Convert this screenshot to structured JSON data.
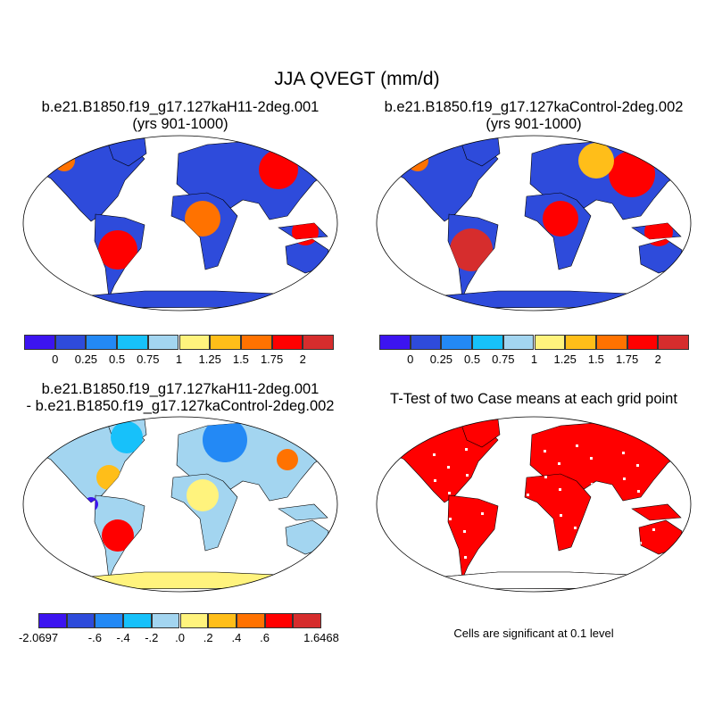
{
  "title": "JJA QVEGT (mm/d)",
  "panels": [
    {
      "title": "b.e21.B1850.f19_g17.127kaH11-2deg.001",
      "subtitle": "(yrs 901-1000)",
      "base_color": "#2e4bdb",
      "field": "case1"
    },
    {
      "title": "b.e21.B1850.f19_g17.127kaControl-2deg.002",
      "subtitle": "(yrs 901-1000)",
      "base_color": "#2e4bdb",
      "field": "case2"
    },
    {
      "title": "b.e21.B1850.f19_g17.127kaH11-2deg.001",
      "subtitle": "- b.e21.B1850.f19_g17.127kaControl-2deg.002",
      "base_color": "#a3d5f0",
      "field": "difference"
    },
    {
      "title": "T-Test of two Case means at each grid point",
      "subtitle": "",
      "base_color": "#ff0000",
      "field": "significance",
      "note": "Cells are significant at 0.1 level"
    }
  ],
  "colorbar_colors": [
    "#3c14f0",
    "#2e4bdb",
    "#2389f5",
    "#17c1fa",
    "#a3d5f0",
    "#fff37d",
    "#ffbe19",
    "#ff7200",
    "#ff0000",
    "#d62d2d"
  ],
  "colorbar_case_labels": [
    "0",
    "0.25",
    "0.5",
    "0.75",
    "1",
    "1.25",
    "1.5",
    "1.75",
    "2"
  ],
  "colorbar_diff_labels": [
    "-2.0697",
    "-.6",
    "-.4",
    "-.2",
    ".0",
    ".2",
    ".4",
    ".6",
    "1.6468"
  ]
}
